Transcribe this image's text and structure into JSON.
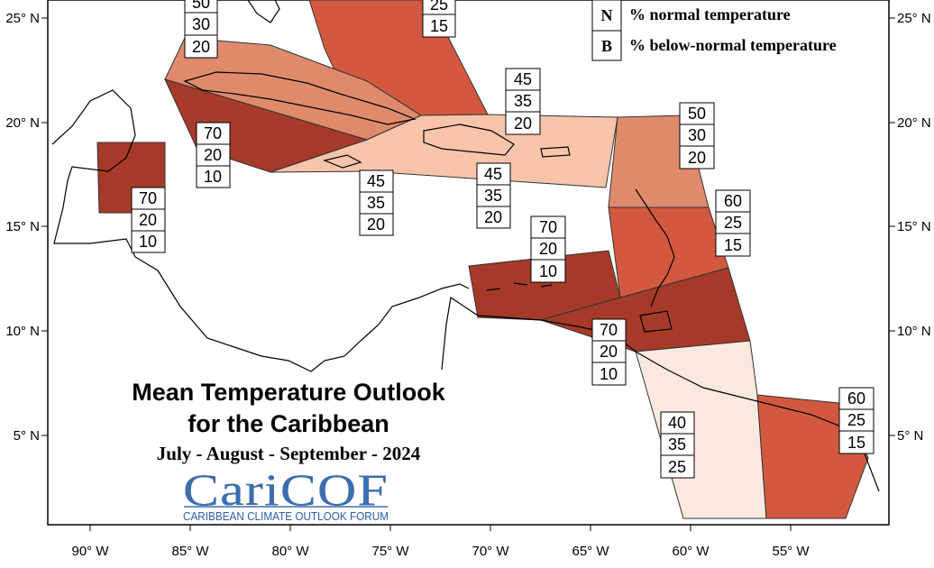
{
  "title": {
    "line1": "Mean Temperature Outlook",
    "line2": "for the Caribbean",
    "period": "July - August - September - 2024"
  },
  "logo": {
    "name": "CariCOF",
    "tagline": "CARIBBEAN CLIMATE OUTLOOK FORUM"
  },
  "legend": [
    {
      "key": "N",
      "text": "% normal temperature"
    },
    {
      "key": "B",
      "text": "% below-normal temperature"
    }
  ],
  "axes": {
    "x_ticks": [
      "90° W",
      "85° W",
      "80° W",
      "75° W",
      "70° W",
      "65° W",
      "60° W",
      "55° W"
    ],
    "y_ticks": [
      "25° N",
      "20° N",
      "15° N",
      "10° N",
      "5° N"
    ]
  },
  "colors": {
    "a70": "#a63a28",
    "a60": "#d2593f",
    "a50": "#e08a6c",
    "a45": "#f8c4aa",
    "a40": "#fbe8df",
    "border": "#000000"
  },
  "forecast_boxes": [
    {
      "id": "bahamas-west",
      "values": [
        "50",
        "30",
        "20"
      ]
    },
    {
      "id": "bahamas-east",
      "values": [
        "25",
        "15"
      ]
    },
    {
      "id": "cuba-west",
      "values": [
        "70",
        "20",
        "10"
      ]
    },
    {
      "id": "belize",
      "values": [
        "70",
        "20",
        "10"
      ]
    },
    {
      "id": "jamaica",
      "values": [
        "45",
        "35",
        "20"
      ]
    },
    {
      "id": "hispaniola",
      "values": [
        "45",
        "35",
        "20"
      ]
    },
    {
      "id": "puerto-rico",
      "values": [
        "45",
        "35",
        "20"
      ]
    },
    {
      "id": "leeward-islands",
      "values": [
        "50",
        "30",
        "20"
      ]
    },
    {
      "id": "windward-islands",
      "values": [
        "60",
        "25",
        "15"
      ]
    },
    {
      "id": "abc-islands",
      "values": [
        "70",
        "20",
        "10"
      ]
    },
    {
      "id": "trinidad",
      "values": [
        "70",
        "20",
        "10"
      ]
    },
    {
      "id": "guyana",
      "values": [
        "40",
        "35",
        "25"
      ]
    },
    {
      "id": "suriname-guiana",
      "values": [
        "60",
        "25",
        "15"
      ]
    }
  ]
}
